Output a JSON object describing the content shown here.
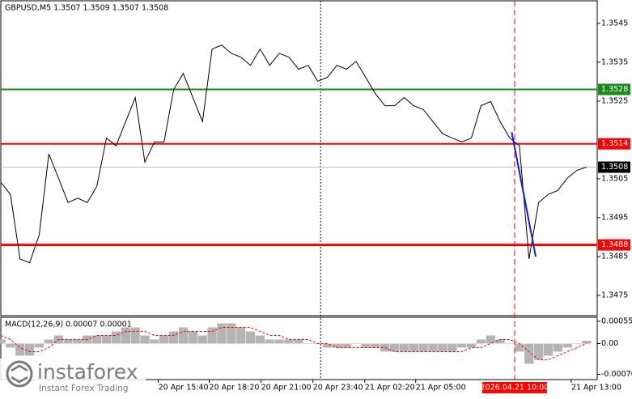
{
  "chart_data": {
    "type": "line",
    "title": "GBPUSD,M5  1.3507 1.3509 1.3507 1.3508",
    "x": [
      0,
      1,
      2,
      3,
      4,
      5,
      6,
      7,
      8,
      9,
      10,
      11,
      12,
      13,
      14,
      15,
      16,
      17,
      18,
      19,
      20,
      21,
      22,
      23,
      24,
      25,
      26,
      27,
      28,
      29,
      30,
      31,
      32,
      33,
      34,
      35,
      36,
      37,
      38,
      39,
      40,
      41,
      42,
      43,
      44,
      45,
      46,
      47,
      48,
      49,
      50,
      51,
      52,
      53,
      54,
      55,
      56,
      57,
      58,
      59,
      60,
      61
    ],
    "series": [
      {
        "color": "#000000",
        "values": [
          1.35041,
          1.3501,
          1.34844,
          1.34834,
          1.34906,
          1.35114,
          1.35052,
          1.34989,
          1.35,
          1.34989,
          1.35031,
          1.35155,
          1.35135,
          1.35197,
          1.35259,
          1.35093,
          1.35145,
          1.35145,
          1.3528,
          1.35321,
          1.35259,
          1.35197,
          1.35384,
          1.35394,
          1.35373,
          1.35363,
          1.35342,
          1.35384,
          1.35342,
          1.35373,
          1.35363,
          1.35332,
          1.35342,
          1.35301,
          1.35311,
          1.35342,
          1.35332,
          1.35352,
          1.35311,
          1.35269,
          1.35238,
          1.35238,
          1.35259,
          1.35238,
          1.35228,
          1.35197,
          1.35166,
          1.35155,
          1.35145,
          1.35155,
          1.35238,
          1.35249,
          1.35197,
          1.35155,
          1.35135,
          1.34844,
          1.34989,
          1.3501,
          1.3502,
          1.35052,
          1.35072,
          1.3508
        ]
      }
    ],
    "xlim": [
      0,
      62.1
    ],
    "ylim": [
      1.34698,
      1.35508
    ],
    "yticks": [
      1.3545,
      1.3535,
      1.3525,
      1.3505,
      1.3495,
      1.3485,
      1.3475
    ],
    "xticks": [
      {
        "value": 16.4,
        "label": "20 Apr 15:40"
      },
      {
        "value": 21.7,
        "label": "20 Apr 18:20"
      },
      {
        "value": 27.1,
        "label": "20 Apr 21:00"
      },
      {
        "value": 32.5,
        "label": "20 Apr 23:40"
      },
      {
        "value": 37.9,
        "label": "21 Apr 02:20"
      },
      {
        "value": 43.2,
        "label": "21 Apr 05:00"
      },
      {
        "value": 59.4,
        "label": "21 Apr 13:00"
      }
    ],
    "levels": [
      {
        "value": 1.3528,
        "color": "#1a8a1a"
      },
      {
        "value": 1.3514,
        "color": "#ff0000"
      },
      {
        "value": 1.3488,
        "color": "#ff0000"
      },
      {
        "value": 1.3508,
        "color": "#000000"
      }
    ],
    "trend_line": {
      "x": [
        53.2,
        55.7
      ],
      "values": [
        1.3517,
        1.3485
      ],
      "color": "#1a1adc"
    },
    "vlines": [
      {
        "value": 33.3,
        "color": "#000000"
      },
      {
        "value": 53.5,
        "color": "#ff0000",
        "label": "2026.04.21 10:00"
      }
    ],
    "macd": {
      "title": "MACD(12,26,9) 0.00007 0.00001",
      "ylim": [
        -0.00089,
        0.00065
      ],
      "yticks": [
        0.00055,
        {
          "value": 0,
          "label": "0.00"
        },
        -0.00076
      ],
      "histogram": [
        0.0001,
        -0.0001,
        -0.0003,
        -0.0003,
        -0.0001,
        0.0001,
        0.0002,
        0.0001,
        0.0001,
        0.0002,
        0.0002,
        0.0002,
        0.0003,
        0.0004,
        0.0004,
        0.0002,
        0.0001,
        0.0002,
        0.0003,
        0.0004,
        0.0003,
        0.0002,
        0.0004,
        0.0005,
        0.0005,
        0.0004,
        0.0003,
        0.0002,
        0.0001,
        0.0001,
        0.0001,
        0.0001,
        0,
        0,
        -0.0001,
        -0.0001,
        -0.0001,
        0,
        -0.0001,
        -0.0001,
        -0.0002,
        -0.0002,
        -0.0002,
        -0.0002,
        -0.0002,
        -0.0002,
        -0.0002,
        -0.0002,
        -0.0001,
        -0.0001,
        0.0001,
        0.0002,
        0.0001,
        0,
        -0.0002,
        -0.0005,
        -0.0004,
        -0.0003,
        -0.0002,
        -0.0001,
        0,
        7e-05
      ],
      "signal": [
        0.0002,
        0.0001,
        -0.0001,
        -0.0002,
        -0.0002,
        -0.0001,
        0.0001,
        0.0001,
        0.0001,
        0.0001,
        0.0002,
        0.0002,
        0.0002,
        0.0003,
        0.0003,
        0.0003,
        0.0002,
        0.0002,
        0.0002,
        0.0003,
        0.0003,
        0.0003,
        0.0003,
        0.0004,
        0.0004,
        0.0004,
        0.0004,
        0.0003,
        0.0002,
        0.0002,
        0.0001,
        0.0001,
        0.0001,
        0,
        0,
        -0.0001,
        -0.0001,
        -0.0001,
        -0.0001,
        -0.0001,
        -0.0001,
        -0.0002,
        -0.0002,
        -0.0002,
        -0.0002,
        -0.0002,
        -0.0002,
        -0.0002,
        -0.0002,
        -0.0001,
        -0.0001,
        0,
        0.0001,
        0.0001,
        0,
        -0.0002,
        -0.0004,
        -0.0004,
        -0.0003,
        -0.0002,
        -0.0001,
        1e-05
      ],
      "histogram_color": "#b4b4b4",
      "signal_color": "#ff0000"
    },
    "logo": {
      "name": "instaforex",
      "tagline": "Instant Forex Trading"
    }
  }
}
